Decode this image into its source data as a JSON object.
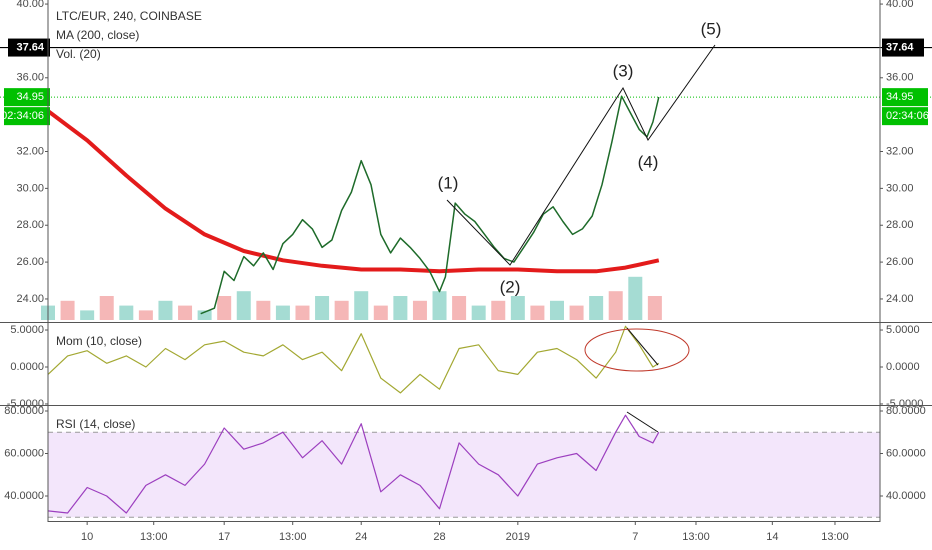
{
  "chart_data": [
    {
      "type": "line",
      "title": "LTC/EUR, 240, COINBASE",
      "xlim": [
        8,
        50.5
      ],
      "ylim": [
        22.75,
        40.22
      ],
      "yticks": [
        {
          "value": 24,
          "label": "24.00"
        },
        {
          "value": 26,
          "label": "26.00"
        },
        {
          "value": 28,
          "label": "28.00"
        },
        {
          "value": 30,
          "label": "30.00"
        },
        {
          "value": 32,
          "label": "32.00"
        },
        {
          "value": 36,
          "label": "36.00"
        },
        {
          "value": 40,
          "label": "40.00"
        }
      ],
      "price": {
        "color": "#1e6b2a",
        "x": [
          15.8,
          16.5,
          17,
          17.5,
          18,
          18.5,
          19,
          19.5,
          20,
          20.5,
          21,
          21.5,
          22,
          22.5,
          23,
          23.5,
          24,
          24.5,
          25,
          25.5,
          26,
          26.5,
          27,
          27.5,
          28,
          28.3,
          28.8,
          29.3,
          29.8,
          30.3,
          30.8,
          31.3,
          31.8,
          32.3,
          32.8,
          33.3,
          33.8,
          34.3,
          34.8,
          35.3,
          35.8,
          36.3,
          36.8,
          37.3,
          37.7,
          38.2,
          38.6,
          38.9,
          39.2
        ],
        "values": [
          23.2,
          23.5,
          25.5,
          25.0,
          26.3,
          25.8,
          26.5,
          25.6,
          27.0,
          27.5,
          28.3,
          27.8,
          26.8,
          27.2,
          28.8,
          29.8,
          31.5,
          30.2,
          27.5,
          26.5,
          27.3,
          26.8,
          26.2,
          25.5,
          24.4,
          25.2,
          29.2,
          28.6,
          28.2,
          27.5,
          26.8,
          26.2,
          26.0,
          26.8,
          27.6,
          28.6,
          29.0,
          28.2,
          27.5,
          27.8,
          28.5,
          30.2,
          32.5,
          35.0,
          34.2,
          33.2,
          32.8,
          33.6,
          34.95
        ]
      },
      "series": [
        {
          "name": "MA (200, close)",
          "color": "#e31b1b",
          "x": [
            8,
            10,
            12,
            14,
            16,
            18,
            20,
            22,
            24,
            26,
            28,
            30,
            32,
            34,
            36,
            37.5,
            39.2
          ],
          "values": [
            34.2,
            32.6,
            30.7,
            28.9,
            27.5,
            26.6,
            26.1,
            25.8,
            25.6,
            25.6,
            25.5,
            25.6,
            25.6,
            25.5,
            25.5,
            25.7,
            26.1
          ]
        },
        {
          "name": "Vol. (20)",
          "type": "bar",
          "axis": "y2",
          "colors": [
            "#8fd3c8",
            "#f3a5a5"
          ],
          "x": [
            8,
            9,
            10,
            11,
            12,
            13,
            14,
            15,
            16,
            17,
            18,
            19,
            20,
            21,
            22,
            23,
            24,
            25,
            26,
            27,
            28,
            29,
            30,
            31,
            32,
            33,
            34,
            35,
            36,
            37,
            38,
            39
          ],
          "values": [
            3,
            4,
            2,
            5,
            3,
            2,
            4,
            3,
            2,
            5,
            6,
            4,
            3,
            3,
            5,
            4,
            6,
            3,
            5,
            4,
            6,
            5,
            3,
            4,
            5,
            3,
            4,
            3,
            5,
            6,
            9,
            5
          ]
        }
      ],
      "y2lim": [
        0,
        10
      ],
      "level": {
        "value": 37.64,
        "color": "#000000"
      },
      "last": {
        "value": 34.95,
        "color": "#00c000",
        "countdown": "02:34:06"
      },
      "annotations": [
        "(1)",
        "(2)",
        "(3)",
        "(4)",
        "(5)"
      ]
    },
    {
      "type": "line",
      "xlim": [
        8,
        50.5
      ],
      "ylim": [
        -5.14,
        5.95
      ],
      "yticks": [
        {
          "value": -5,
          "label": "-5.0000"
        },
        {
          "value": 0,
          "label": "0.0000"
        },
        {
          "value": 5,
          "label": "5.0000"
        }
      ],
      "x": [
        8,
        9,
        10,
        11,
        12,
        13,
        14,
        15,
        16,
        17,
        18,
        19,
        20,
        21,
        22,
        23,
        24,
        25,
        26,
        27,
        28,
        29,
        30,
        31,
        32,
        33,
        34,
        35,
        36,
        37,
        37.5,
        38.2,
        38.9,
        39.2
      ],
      "series": [
        {
          "name": "Mom (10, close)",
          "color": "#a3a832",
          "values": [
            -1,
            1.5,
            2.2,
            0.5,
            1.5,
            0,
            2.5,
            1,
            3,
            3.5,
            2,
            1.5,
            3,
            1,
            2,
            -0.5,
            4.5,
            -1.5,
            -3.5,
            -1,
            -3,
            2.5,
            3,
            -0.5,
            -1,
            2,
            2.5,
            1,
            -1.5,
            2,
            5.5,
            3,
            0,
            0.5
          ]
        }
      ]
    },
    {
      "type": "line",
      "xlim": [
        8,
        50.5
      ],
      "ylim": [
        28.24,
        82.35
      ],
      "yticks": [
        {
          "value": 40,
          "label": "40.0000"
        },
        {
          "value": 60,
          "label": "60.0000"
        },
        {
          "value": 80,
          "label": "80.0000"
        }
      ],
      "band": [
        30,
        70
      ],
      "band_color": "#f3e6fb",
      "x": [
        8,
        9,
        10,
        11,
        12,
        13,
        14,
        15,
        16,
        17,
        18,
        19,
        20,
        21,
        22,
        23,
        24,
        25,
        26,
        27,
        28,
        29,
        30,
        31,
        32,
        33,
        34,
        35,
        36,
        37,
        37.5,
        38.2,
        38.9,
        39.2
      ],
      "series": [
        {
          "name": "RSI (14, close)",
          "color": "#9c3fbf",
          "values": [
            33,
            32,
            44,
            40,
            32,
            45,
            50,
            45,
            55,
            72,
            62,
            65,
            70,
            58,
            66,
            55,
            74,
            42,
            50,
            45,
            34,
            65,
            55,
            50,
            40,
            55,
            58,
            60,
            52,
            70,
            78,
            68,
            65,
            70
          ]
        }
      ],
      "xticks": [
        10,
        {
          "value": 13.4,
          "label": "13:00"
        },
        17,
        {
          "value": 20.5,
          "label": "13:00"
        },
        24,
        28,
        {
          "value": 32,
          "label": "2019"
        },
        {
          "value": 38,
          "label": "7"
        },
        {
          "value": 41.1,
          "label": "13:00"
        },
        {
          "value": 45,
          "label": "14"
        },
        {
          "value": 48.2,
          "label": "13:00"
        }
      ]
    }
  ]
}
